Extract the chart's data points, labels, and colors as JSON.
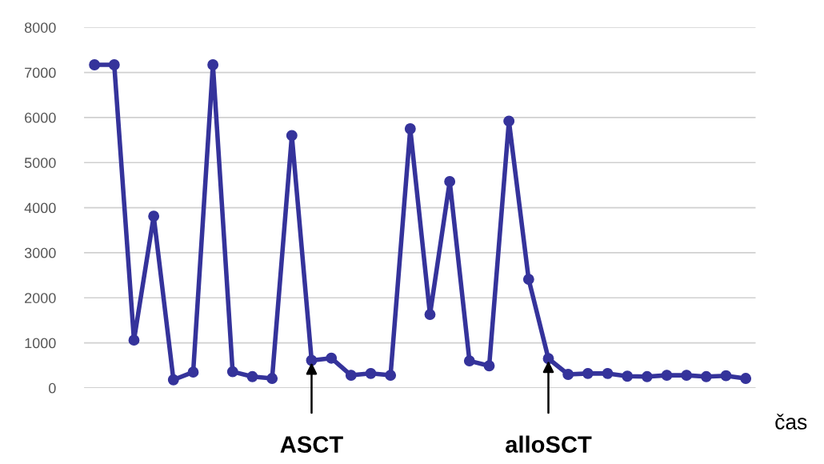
{
  "chart_data": {
    "type": "line",
    "xlabel": "čas",
    "categories": [
      null,
      null,
      null,
      null,
      null,
      null,
      null,
      null,
      null,
      null,
      null,
      null,
      null,
      null,
      null,
      null,
      null,
      null,
      null,
      null,
      null,
      null,
      null,
      null,
      null,
      null,
      null,
      null,
      null,
      null,
      null,
      null,
      null,
      null
    ],
    "series": [
      {
        "color": "#35339b",
        "values": [
          7170,
          7170,
          1060,
          3810,
          180,
          350,
          7170,
          360,
          250,
          210,
          5600,
          610,
          660,
          280,
          320,
          280,
          5750,
          1630,
          4580,
          600,
          490,
          5920,
          2410,
          650,
          300,
          320,
          320,
          260,
          250,
          280,
          280,
          250,
          270,
          210
        ]
      }
    ],
    "ylim": [
      0,
      8000
    ],
    "yticks": [
      0,
      1000,
      2000,
      3000,
      4000,
      5000,
      6000,
      7000,
      8000
    ],
    "grid": "y",
    "tick_labels": "y",
    "marker": "circle",
    "line_style": "solid",
    "annotations": [
      {
        "text": "ASCT",
        "y": 610
      },
      {
        "text": "alloSCT",
        "y": 650
      }
    ]
  }
}
